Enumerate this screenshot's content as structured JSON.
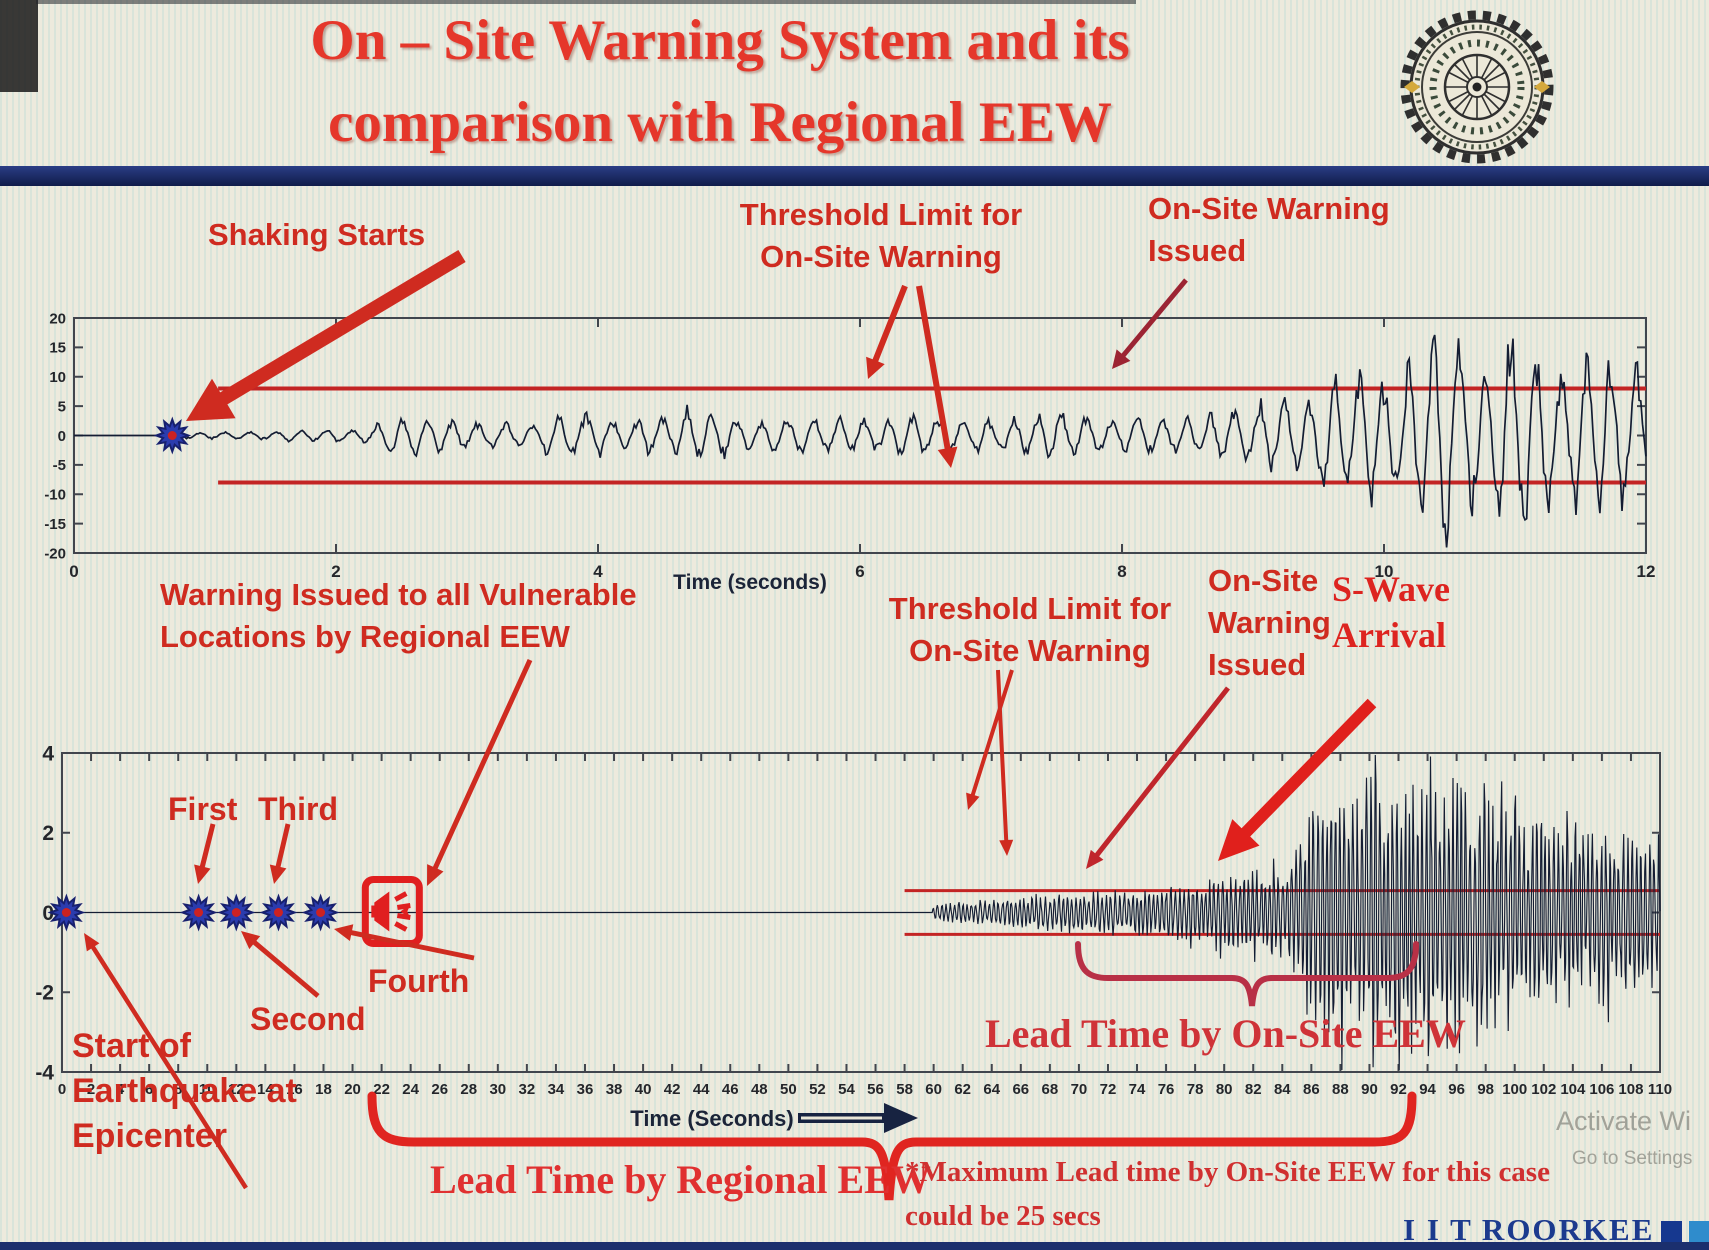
{
  "header": {
    "title_line1": "On – Site Warning System and its",
    "title_line2": "comparison with Regional EEW",
    "logo_name": "iit-roorkee-emblem"
  },
  "colors": {
    "accent_red": "#cf2b20",
    "crimson_brace": "#b83046",
    "bracket_red": "#e02520",
    "navy_text": "#1c3a8e",
    "waveform": "#141d33",
    "threshold_red": "#c32424",
    "star_blue": "#2b3cae",
    "star_center_red": "#cc2222",
    "background": "#edeadd"
  },
  "chart_data": [
    {
      "type": "line",
      "name": "On-site single station seismogram",
      "xlabel": "Time (seconds)",
      "ylabel": "",
      "xlim": [
        0,
        12
      ],
      "ylim": [
        -20,
        20
      ],
      "xticks": {
        "min": 0,
        "max": 12,
        "step": 2
      },
      "yticks": {
        "min": -20,
        "max": 20,
        "step": 5
      },
      "grid": false,
      "legend": "none",
      "threshold": {
        "upper": 8,
        "lower": -8,
        "x_start": 1.1,
        "label": "Threshold Limit for On-Site Warning"
      },
      "events": {
        "shaking_starts_x": 0.75,
        "onsite_warning_issued_x": 9.2
      },
      "envelope": [
        [
          0,
          0
        ],
        [
          0.74,
          0
        ],
        [
          0.75,
          0.5
        ],
        [
          1.2,
          0.6
        ],
        [
          1.8,
          0.9
        ],
        [
          2.2,
          1.1
        ],
        [
          2.45,
          3.3
        ],
        [
          2.7,
          3.8
        ],
        [
          3.0,
          2.2
        ],
        [
          3.5,
          2.3
        ],
        [
          3.8,
          4.3
        ],
        [
          4.1,
          2.4
        ],
        [
          4.5,
          2.9
        ],
        [
          4.8,
          4.6
        ],
        [
          5.2,
          2.5
        ],
        [
          5.6,
          3.3
        ],
        [
          6.0,
          2.7
        ],
        [
          6.4,
          3.5
        ],
        [
          6.8,
          2.7
        ],
        [
          7.2,
          3.2
        ],
        [
          7.5,
          4.2
        ],
        [
          7.9,
          2.7
        ],
        [
          8.3,
          3.1
        ],
        [
          8.7,
          3.6
        ],
        [
          9.0,
          5.4
        ],
        [
          9.2,
          7.2
        ],
        [
          9.35,
          5.6
        ],
        [
          9.6,
          9.5
        ],
        [
          9.8,
          12.5
        ],
        [
          10.0,
          9.5
        ],
        [
          10.2,
          13.5
        ],
        [
          10.45,
          18.5
        ],
        [
          10.7,
          12.5
        ],
        [
          10.9,
          17.5
        ],
        [
          11.1,
          18.5
        ],
        [
          11.3,
          11
        ],
        [
          11.5,
          13.5
        ],
        [
          11.7,
          15.5
        ],
        [
          11.85,
          11
        ],
        [
          12,
          13
        ]
      ]
    },
    {
      "type": "line",
      "name": "Regional EEW vs on-site warning timeline seismogram",
      "xlabel": "Time (Seconds)",
      "ylabel": "",
      "xlim": [
        0,
        110
      ],
      "ylim": [
        -4,
        4
      ],
      "xticks": {
        "min": 0,
        "max": 110,
        "step": 2
      },
      "yticks": {
        "min": -4,
        "max": 4,
        "step": 2
      },
      "grid": false,
      "legend": "none",
      "threshold": {
        "upper": 0.55,
        "lower": -0.55,
        "x_start": 58,
        "label": "Threshold Limit for On-Site Warning"
      },
      "p_wave_detections": [
        {
          "label": "Start of Earthquake at Epicenter",
          "x": 0.3
        },
        {
          "label": "First",
          "x": 9.4
        },
        {
          "label": "Second",
          "x": 12
        },
        {
          "label": "Third",
          "x": 14.9
        },
        {
          "label": "Fourth",
          "x": 17.8
        }
      ],
      "events": {
        "regional_warning_issued_x": 22.6,
        "onsite_warning_issued_x": 80,
        "s_wave_arrival_x": 93,
        "lead_time_regional_span": [
          21.3,
          92.9
        ],
        "lead_time_onsite_span": [
          70,
          93.2
        ]
      },
      "envelope": [
        [
          0,
          0
        ],
        [
          59.9,
          0
        ],
        [
          60,
          0.18
        ],
        [
          63,
          0.3
        ],
        [
          66,
          0.38
        ],
        [
          70,
          0.5
        ],
        [
          74,
          0.55
        ],
        [
          78,
          0.72
        ],
        [
          80,
          0.85
        ],
        [
          82,
          0.95
        ],
        [
          84,
          1.15
        ],
        [
          85,
          1.7
        ],
        [
          86,
          2.7
        ],
        [
          88,
          3.3
        ],
        [
          89,
          2.5
        ],
        [
          90,
          3.7
        ],
        [
          91,
          2.7
        ],
        [
          92,
          3.9
        ],
        [
          93,
          3.1
        ],
        [
          94,
          3.7
        ],
        [
          95,
          2.9
        ],
        [
          96,
          3.4
        ],
        [
          97,
          2.7
        ],
        [
          98,
          3.2
        ],
        [
          99,
          2.5
        ],
        [
          100,
          3.0
        ],
        [
          101,
          2.3
        ],
        [
          102,
          2.8
        ],
        [
          103,
          2.1
        ],
        [
          104,
          2.6
        ],
        [
          105,
          2.0
        ],
        [
          106,
          2.4
        ],
        [
          107,
          1.9
        ],
        [
          108,
          2.3
        ],
        [
          109,
          1.8
        ],
        [
          110,
          2.1
        ]
      ]
    }
  ],
  "annotations": {
    "top_chart": {
      "shaking_starts": "Shaking Starts",
      "threshold_line1": "Threshold Limit for",
      "threshold_line2": "On-Site Warning",
      "issued_line1": "On-Site Warning",
      "issued_line2": "Issued"
    },
    "bottom_chart": {
      "regional_line1": "Warning Issued to all Vulnerable",
      "regional_line2": "Locations by Regional EEW",
      "first": "First",
      "second": "Second",
      "third": "Third",
      "fourth": "Fourth",
      "threshold_line1": "Threshold Limit for",
      "threshold_line2": "On-Site Warning",
      "issued_line1": "On-Site",
      "issued_line2": "Warning",
      "issued_line3": "Issued",
      "swave_line1": "S-Wave",
      "swave_line2": "Arrival",
      "lead_onsite": "Lead Time by On-Site EEW",
      "lead_regional": "Lead Time by Regional EEW",
      "start_line1": "Start of",
      "start_line2": "Earthquake at",
      "start_line3": "Epicenter",
      "note_line1": "*Maximum Lead time by On-Site EEW for this case",
      "note_line2": "could be 25 secs"
    }
  },
  "footer": {
    "brand": "I I T ROORKEE",
    "brand_squares": [
      "#16388f",
      "#2f8ccc",
      "#217a47"
    ],
    "watermark_line1": "Activate Wi",
    "watermark_line2": "Go to Settings"
  }
}
